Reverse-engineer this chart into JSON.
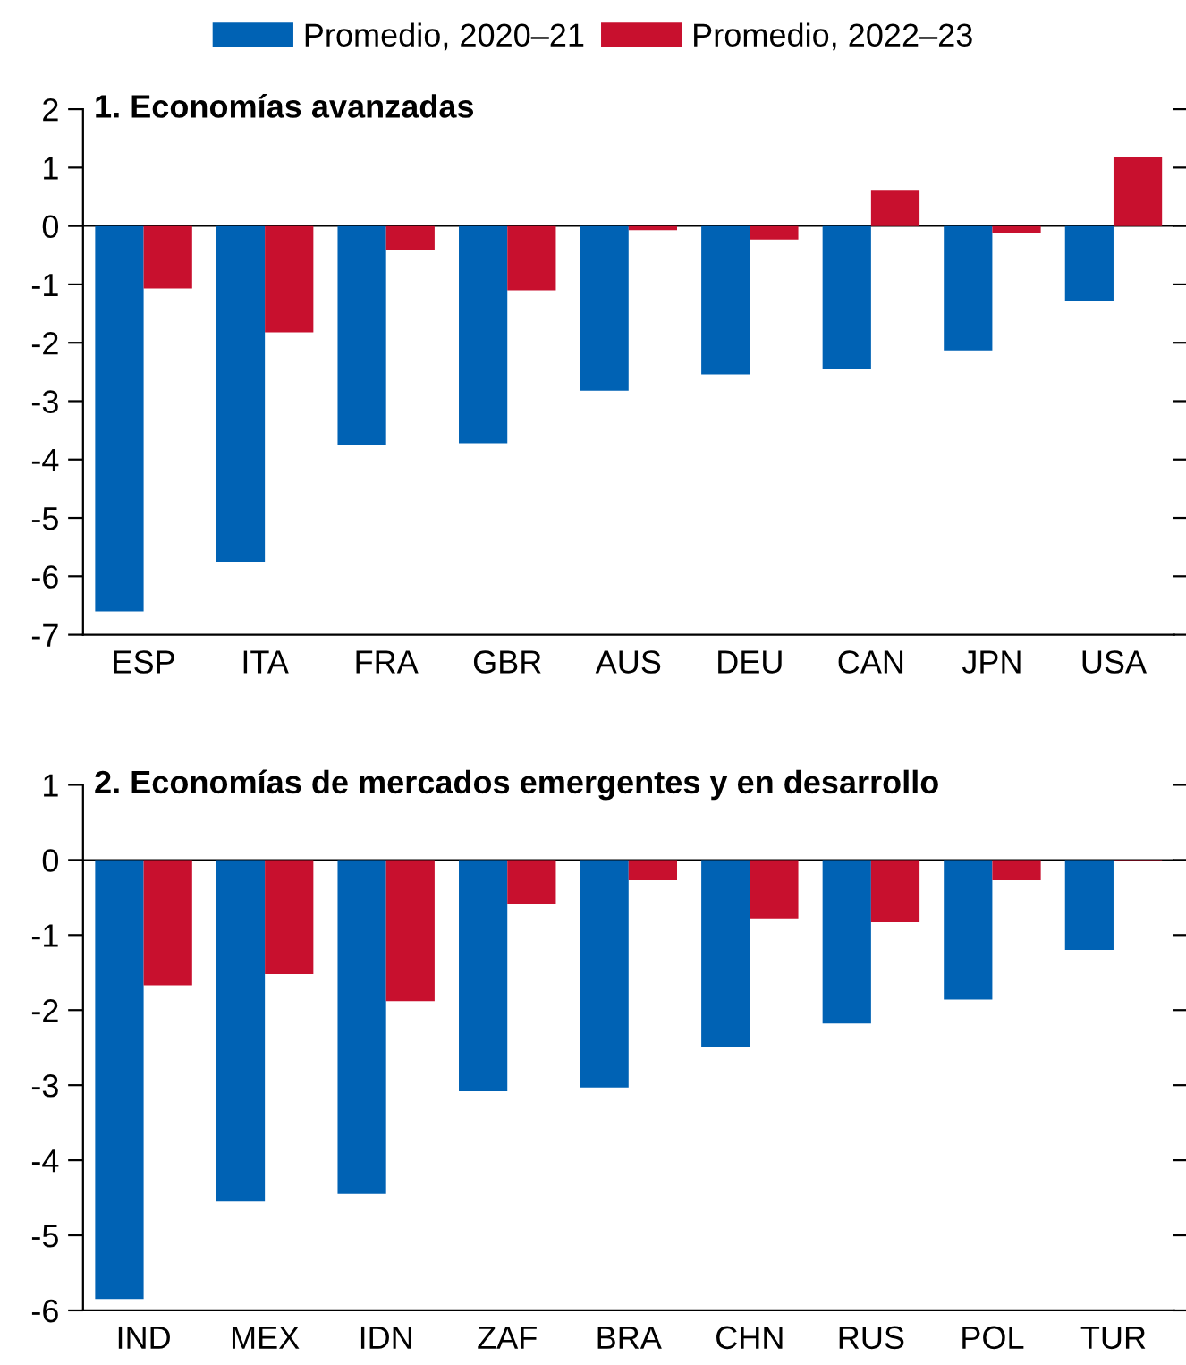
{
  "chart_data": [
    {
      "type": "bar",
      "title": "1. Economías avanzadas",
      "categories": [
        "ESP",
        "ITA",
        "FRA",
        "GBR",
        "AUS",
        "DEU",
        "CAN",
        "JPN",
        "USA"
      ],
      "series": [
        {
          "name": "Promedio, 2020–21",
          "color": "#0062b4",
          "values": [
            -6.6,
            -5.75,
            -3.75,
            -3.72,
            -2.82,
            -2.54,
            -2.45,
            -2.13,
            -1.29
          ]
        },
        {
          "name": "Promedio, 2022–23",
          "color": "#c8102e",
          "values": [
            -1.07,
            -1.82,
            -0.42,
            -1.1,
            -0.07,
            -0.23,
            0.62,
            -0.13,
            1.18
          ]
        }
      ],
      "ylim": [
        -7,
        2
      ],
      "yticks": [
        -7,
        -6,
        -5,
        -4,
        -3,
        -2,
        -1,
        0,
        1,
        2
      ],
      "legend": "top",
      "grid": false,
      "ref_lines": [
        {
          "axis": "y",
          "value": 0
        }
      ]
    },
    {
      "type": "bar",
      "title": "2. Economías de mercados emergentes y en desarrollo",
      "categories": [
        "IND",
        "MEX",
        "IDN",
        "ZAF",
        "BRA",
        "CHN",
        "RUS",
        "POL",
        "TUR"
      ],
      "series": [
        {
          "color": "#0062b4",
          "values": [
            -5.85,
            -4.55,
            -4.45,
            -3.08,
            -3.03,
            -2.49,
            -2.18,
            -1.86,
            -1.2
          ]
        },
        {
          "color": "#c8102e",
          "values": [
            -1.67,
            -1.52,
            -1.88,
            -0.59,
            -0.27,
            -0.78,
            -0.83,
            -0.27,
            -0.02
          ]
        }
      ],
      "ylim": [
        -6,
        1
      ],
      "yticks": [
        -6,
        -5,
        -4,
        -3,
        -2,
        -1,
        0,
        1
      ],
      "legend": false,
      "grid": false,
      "ref_lines": [
        {
          "axis": "y",
          "value": 0
        }
      ]
    }
  ]
}
